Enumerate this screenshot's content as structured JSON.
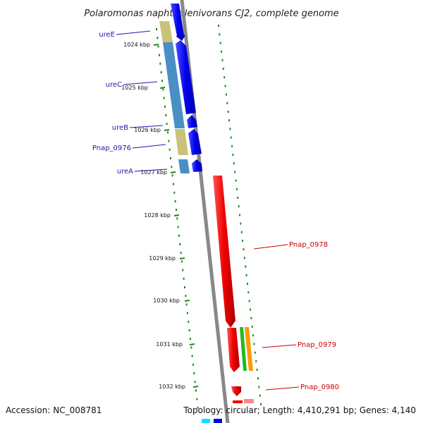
{
  "title": "Polaromonas naphthalenivorans CJ2, complete genome",
  "footer": {
    "accession": "Accession: NC_008781",
    "summary": "Topology: circular; Length: 4,410,291 bp; Genes: 4,140"
  },
  "ticks": [
    "1024 kbp",
    "1025 kbp",
    "1026 kbp",
    "1027 kbp",
    "1028 kbp",
    "1029 kbp",
    "1030 kbp",
    "1031 kbp",
    "1032 kbp"
  ],
  "genes_left": [
    {
      "label": "ureE",
      "color": "#1a1aaa"
    },
    {
      "label": "ureC",
      "color": "#1a1aaa"
    },
    {
      "label": "ureB",
      "color": "#1a1aaa"
    },
    {
      "label": "Pnap_0976",
      "color": "#1a1aaa"
    },
    {
      "label": "ureA",
      "color": "#1a1aaa"
    }
  ],
  "genes_right": [
    {
      "label": "Pnap_0978",
      "color": "#cc0000"
    },
    {
      "label": "Pnap_0979",
      "color": "#cc0000"
    },
    {
      "label": "Pnap_0980",
      "color": "#cc0000"
    }
  ],
  "colors": {
    "backbone": "#888888",
    "forward_cds": "#0000ee",
    "reverse_cds": "#ee0000",
    "gene_tan": "#c8c27a",
    "gene_steel": "#4a8fc4",
    "gene_green": "#22bb22",
    "gene_orange": "#ff9900",
    "gene_cyan": "#00e5ff",
    "tick_green": "#1a8a1a"
  }
}
